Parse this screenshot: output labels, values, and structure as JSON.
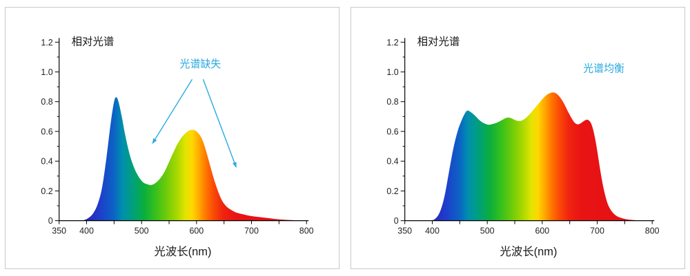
{
  "page": {
    "background": "#ffffff",
    "panel_border": "#c9c9c9",
    "axis_color": "#000000",
    "text_color": "#222222",
    "annotation_color": "#29a9e1"
  },
  "spectrum_gradient": [
    [
      400,
      "#2b24b8"
    ],
    [
      425,
      "#1e3ecc"
    ],
    [
      450,
      "#0b64c4"
    ],
    [
      465,
      "#008fae"
    ],
    [
      485,
      "#00a07a"
    ],
    [
      505,
      "#0bae3c"
    ],
    [
      525,
      "#36c01d"
    ],
    [
      545,
      "#6ecb0a"
    ],
    [
      565,
      "#abd800"
    ],
    [
      580,
      "#e2e400"
    ],
    [
      592,
      "#ffd800"
    ],
    [
      604,
      "#ffab00"
    ],
    [
      616,
      "#ff7a00"
    ],
    [
      630,
      "#fb4d05"
    ],
    [
      648,
      "#f02410"
    ],
    [
      670,
      "#e81414"
    ],
    [
      800,
      "#e30d13"
    ]
  ],
  "chart_data": [
    {
      "type": "area",
      "title": "相对光谱",
      "xlabel": "光波长(nm)",
      "ylabel": "",
      "xlim": [
        350,
        800
      ],
      "ylim": [
        0,
        1.2
      ],
      "x_tick_step": 50,
      "x_labeled_ticks": [
        350,
        400,
        500,
        600,
        700,
        800
      ],
      "y_ticks": [
        0,
        0.2,
        0.4,
        0.6,
        0.8,
        1.0,
        1.2
      ],
      "y_minor_step": 0.1,
      "grid": false,
      "legend": "none",
      "annotation": {
        "text": "光谱缺失",
        "color": "#29a9e1",
        "x": 607,
        "y": 1.03,
        "arrows": [
          {
            "from": [
              592,
              0.95
            ],
            "to": [
              520,
              0.52
            ]
          },
          {
            "from": [
              612,
              0.95
            ],
            "to": [
              672,
              0.36
            ]
          }
        ]
      },
      "points": [
        [
          388,
          0
        ],
        [
          396,
          0.005
        ],
        [
          404,
          0.02
        ],
        [
          412,
          0.05
        ],
        [
          420,
          0.11
        ],
        [
          428,
          0.22
        ],
        [
          436,
          0.42
        ],
        [
          444,
          0.66
        ],
        [
          450,
          0.8
        ],
        [
          454,
          0.83
        ],
        [
          458,
          0.8
        ],
        [
          464,
          0.7
        ],
        [
          470,
          0.58
        ],
        [
          478,
          0.45
        ],
        [
          486,
          0.36
        ],
        [
          494,
          0.3
        ],
        [
          502,
          0.26
        ],
        [
          510,
          0.245
        ],
        [
          518,
          0.24
        ],
        [
          526,
          0.255
        ],
        [
          534,
          0.285
        ],
        [
          542,
          0.33
        ],
        [
          550,
          0.395
        ],
        [
          558,
          0.46
        ],
        [
          566,
          0.52
        ],
        [
          574,
          0.565
        ],
        [
          582,
          0.595
        ],
        [
          590,
          0.61
        ],
        [
          598,
          0.605
        ],
        [
          606,
          0.575
        ],
        [
          612,
          0.53
        ],
        [
          618,
          0.46
        ],
        [
          624,
          0.38
        ],
        [
          630,
          0.3
        ],
        [
          636,
          0.23
        ],
        [
          642,
          0.17
        ],
        [
          648,
          0.125
        ],
        [
          656,
          0.09
        ],
        [
          664,
          0.07
        ],
        [
          672,
          0.055
        ],
        [
          682,
          0.045
        ],
        [
          694,
          0.035
        ],
        [
          708,
          0.027
        ],
        [
          724,
          0.02
        ],
        [
          740,
          0.013
        ],
        [
          758,
          0.007
        ],
        [
          778,
          0.003
        ],
        [
          800,
          0.001
        ]
      ]
    },
    {
      "type": "area",
      "title": "相对光谱",
      "xlabel": "光波长(nm)",
      "ylabel": "",
      "xlim": [
        350,
        800
      ],
      "ylim": [
        0,
        1.2
      ],
      "x_tick_step": 50,
      "x_labeled_ticks": [
        350,
        400,
        500,
        600,
        700,
        800
      ],
      "y_ticks": [
        0,
        0.2,
        0.4,
        0.6,
        0.8,
        1.0,
        1.2
      ],
      "y_minor_step": 0.1,
      "grid": false,
      "legend": "none",
      "annotation": {
        "text": "光谱均衡",
        "color": "#29a9e1",
        "x": 712,
        "y": 1.0,
        "arrows": []
      },
      "points": [
        [
          398,
          0
        ],
        [
          406,
          0.015
        ],
        [
          414,
          0.06
        ],
        [
          422,
          0.16
        ],
        [
          430,
          0.32
        ],
        [
          438,
          0.48
        ],
        [
          446,
          0.6
        ],
        [
          454,
          0.68
        ],
        [
          460,
          0.725
        ],
        [
          464,
          0.74
        ],
        [
          470,
          0.73
        ],
        [
          478,
          0.705
        ],
        [
          486,
          0.675
        ],
        [
          494,
          0.655
        ],
        [
          502,
          0.645
        ],
        [
          510,
          0.65
        ],
        [
          518,
          0.66
        ],
        [
          526,
          0.675
        ],
        [
          534,
          0.69
        ],
        [
          540,
          0.693
        ],
        [
          546,
          0.685
        ],
        [
          554,
          0.672
        ],
        [
          562,
          0.672
        ],
        [
          570,
          0.69
        ],
        [
          578,
          0.72
        ],
        [
          586,
          0.755
        ],
        [
          594,
          0.79
        ],
        [
          602,
          0.825
        ],
        [
          610,
          0.85
        ],
        [
          618,
          0.862
        ],
        [
          624,
          0.858
        ],
        [
          630,
          0.84
        ],
        [
          636,
          0.81
        ],
        [
          642,
          0.77
        ],
        [
          648,
          0.725
        ],
        [
          654,
          0.685
        ],
        [
          660,
          0.655
        ],
        [
          666,
          0.648
        ],
        [
          672,
          0.66
        ],
        [
          678,
          0.675
        ],
        [
          683,
          0.678
        ],
        [
          688,
          0.66
        ],
        [
          692,
          0.62
        ],
        [
          696,
          0.555
        ],
        [
          700,
          0.47
        ],
        [
          704,
          0.375
        ],
        [
          708,
          0.285
        ],
        [
          712,
          0.21
        ],
        [
          716,
          0.15
        ],
        [
          720,
          0.105
        ],
        [
          726,
          0.065
        ],
        [
          734,
          0.035
        ],
        [
          744,
          0.018
        ],
        [
          756,
          0.008
        ],
        [
          772,
          0.003
        ],
        [
          800,
          0
        ]
      ]
    }
  ]
}
